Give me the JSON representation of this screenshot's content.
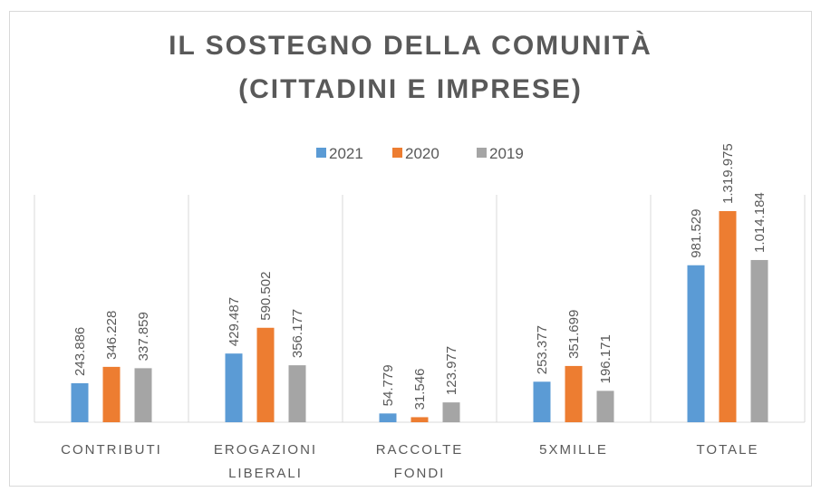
{
  "chart_data": {
    "type": "bar",
    "title": [
      "IL SOSTEGNO DELLA COMUNITÀ",
      "(CITTADINI E IMPRESE)"
    ],
    "categories": [
      "CONTRIBUTI",
      "EROGAZIONI LIBERALI",
      "RACCOLTE FONDI",
      "5XMILLE",
      "TOTALE"
    ],
    "series": [
      {
        "name": "2021",
        "color": "#5b9bd5",
        "values": [
          243886,
          429487,
          54779,
          253377,
          981529
        ],
        "value_labels": [
          "243.886",
          "429.487",
          "54.779",
          "253.377",
          "981.529"
        ]
      },
      {
        "name": "2020",
        "color": "#ed7d31",
        "values": [
          346228,
          590502,
          31546,
          351699,
          1319975
        ],
        "value_labels": [
          "346.228",
          "590.502",
          "31.546",
          "351.699",
          "1.319.975"
        ]
      },
      {
        "name": "2019",
        "color": "#a5a5a5",
        "values": [
          337859,
          356177,
          123977,
          196171,
          1014184
        ],
        "value_labels": [
          "337.859",
          "356.177",
          "123.977",
          "196.171",
          "1.014.184"
        ]
      }
    ],
    "legend": "top"
  }
}
